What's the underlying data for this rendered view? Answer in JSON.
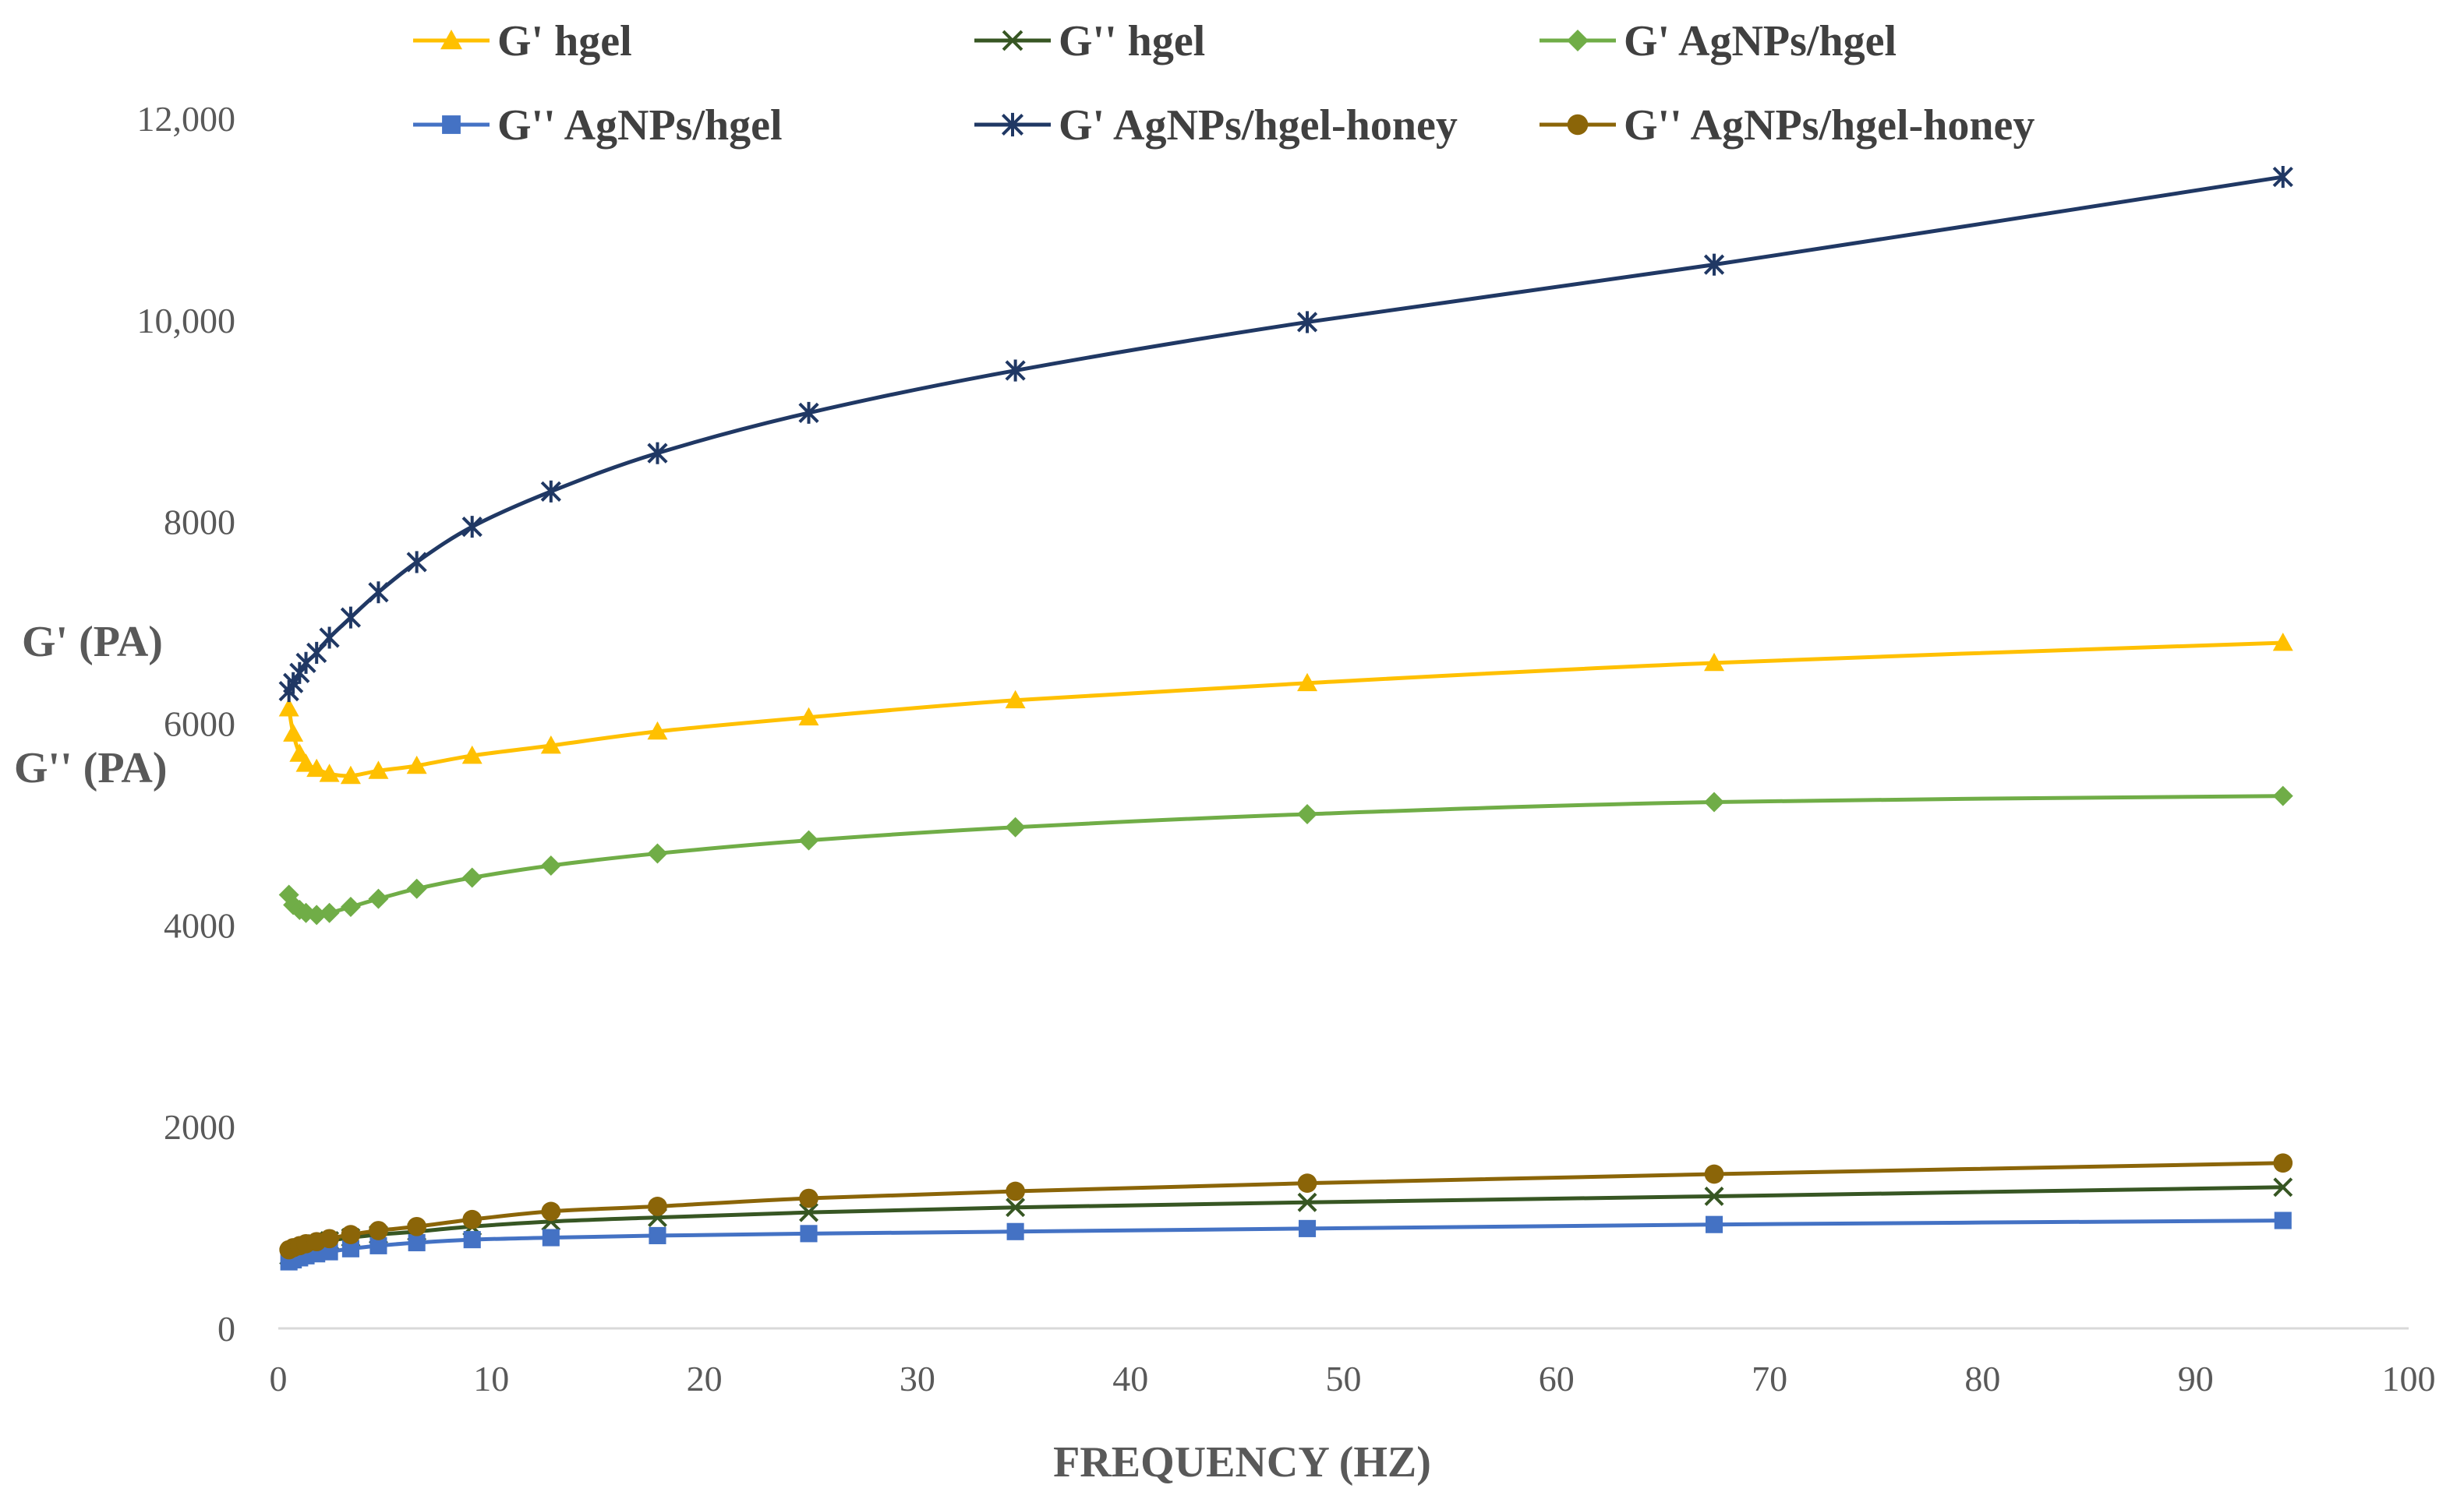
{
  "chart_data": {
    "type": "line",
    "title": "",
    "xlabel": "FREQUENCY (HZ)",
    "ylabel_lines": [
      "G' (PA)",
      "G'' (PA)"
    ],
    "xlim": [
      0,
      100
    ],
    "ylim": [
      0,
      12000
    ],
    "x_ticks": [
      0,
      10,
      20,
      30,
      40,
      50,
      60,
      70,
      80,
      90,
      100
    ],
    "x_tick_labels": [
      "0",
      "10",
      "20",
      "30",
      "40",
      "50",
      "60",
      "70",
      "80",
      "90",
      "100"
    ],
    "y_ticks": [
      0,
      2000,
      4000,
      6000,
      8000,
      10000,
      12000
    ],
    "y_tick_labels": [
      "0",
      "2000",
      "4000",
      "6000",
      "8000",
      "10,000",
      "12,000"
    ],
    "grid": false,
    "legend_position": "top",
    "x": [
      0.5,
      0.7,
      1.0,
      1.3,
      1.8,
      2.4,
      3.4,
      4.7,
      6.5,
      9.1,
      12.8,
      17.8,
      24.9,
      34.6,
      48.3,
      67.4,
      94.1
    ],
    "series": [
      {
        "name": "G' hgel",
        "color": "#FFC000",
        "marker": "triangle",
        "values": [
          6150,
          5900,
          5700,
          5600,
          5550,
          5500,
          5480,
          5530,
          5580,
          5680,
          5780,
          5920,
          6060,
          6230,
          6400,
          6600,
          6800
        ]
      },
      {
        "name": "G'' hgel",
        "color": "#375623",
        "marker": "x",
        "values": [
          720,
          750,
          780,
          810,
          840,
          870,
          900,
          930,
          960,
          1010,
          1060,
          1100,
          1150,
          1200,
          1250,
          1310,
          1400
        ]
      },
      {
        "name": "G' AgNPs/hgel",
        "color": "#70AD47",
        "marker": "diamond",
        "values": [
          4300,
          4200,
          4150,
          4120,
          4100,
          4120,
          4180,
          4260,
          4360,
          4470,
          4590,
          4710,
          4840,
          4970,
          5100,
          5220,
          5280
        ]
      },
      {
        "name": "G'' AgNPs/hgel",
        "color": "#4472C4",
        "marker": "square",
        "values": [
          660,
          680,
          700,
          720,
          740,
          760,
          790,
          820,
          850,
          880,
          900,
          920,
          940,
          960,
          990,
          1030,
          1070
        ]
      },
      {
        "name": "G' AgNPs/hgel-honey",
        "color": "#203864",
        "marker": "star",
        "values": [
          6320,
          6400,
          6500,
          6600,
          6700,
          6850,
          7050,
          7300,
          7600,
          7950,
          8300,
          8680,
          9080,
          9500,
          9980,
          10550,
          11420
        ]
      },
      {
        "name": "G'' AgNPs/hgel-honey",
        "color": "#8B6508",
        "marker": "circle",
        "values": [
          780,
          800,
          820,
          840,
          860,
          890,
          930,
          970,
          1010,
          1080,
          1160,
          1210,
          1290,
          1360,
          1440,
          1530,
          1640
        ]
      }
    ]
  }
}
